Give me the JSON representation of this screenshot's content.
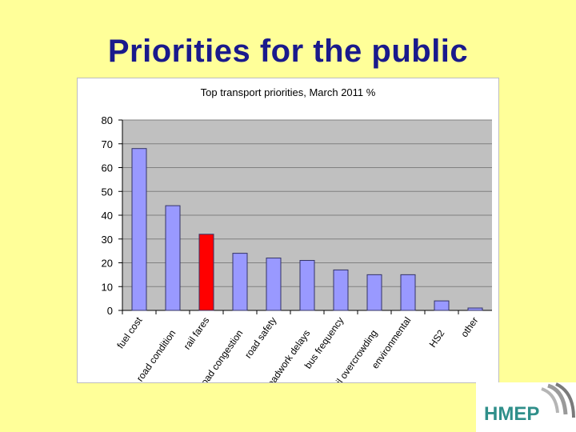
{
  "slide": {
    "title": "Priorities for the public"
  },
  "logo": {
    "text": "HMEP"
  },
  "colors": {
    "bar": "#9999ff",
    "highlight": "#ff0000",
    "plot_bg": "#c0c0c0",
    "title": "#1a1a8c"
  },
  "chart_data": {
    "type": "bar",
    "title": "Top transport priorities, March 2011  %",
    "categories": [
      "fuel cost",
      "road condition",
      "rail fares",
      "road congestion",
      "road safety",
      "roadwork delays",
      "bus frequency",
      "rail overcrowding",
      "environmental",
      "HS2",
      "other"
    ],
    "tick_labels": [
      "fuel cost",
      "road condition",
      "rail fares",
      "road congestion",
      "road safety",
      "roadwork delays",
      "bus frequency",
      "rail overcrowding",
      "environmental",
      "HS2",
      "other"
    ],
    "values": [
      68,
      44,
      32,
      24,
      22,
      21,
      17,
      15,
      15,
      4,
      1
    ],
    "highlight_index": 2,
    "ylim": [
      0,
      80
    ],
    "yticks": [
      0,
      10,
      20,
      30,
      40,
      50,
      60,
      70,
      80
    ],
    "grid": true,
    "xlabel": "",
    "ylabel": ""
  }
}
